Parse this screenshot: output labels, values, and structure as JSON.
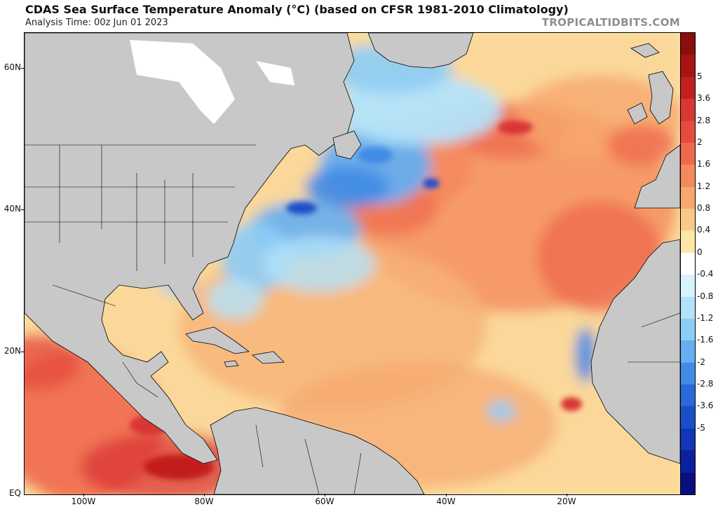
{
  "header": {
    "title": "CDAS Sea Surface Temperature Anomaly (°C) (based on CFSR 1981-2010 Climatology)",
    "analysis_time": "Analysis Time: 00z Jun 01 2023",
    "watermark": "TROPICALTIDBITS.COM"
  },
  "map": {
    "lat_labels": [
      "60N",
      "40N",
      "20N",
      "EQ"
    ],
    "lon_labels": [
      "100W",
      "80W",
      "60W",
      "40W",
      "20W"
    ],
    "land_color": "#c8c8c8",
    "ice_color": "#ffffff",
    "border_color": "#000000"
  },
  "colorbar": {
    "labels": [
      "5",
      "3.6",
      "2.8",
      "2",
      "1.6",
      "1.2",
      "0.8",
      "0.4",
      "0",
      "-0.4",
      "-0.8",
      "-1.2",
      "-1.6",
      "-2",
      "-2.8",
      "-3.6",
      "-5"
    ],
    "colors": [
      "#8b0d0d",
      "#a71414",
      "#c21f1f",
      "#d93636",
      "#e54c3f",
      "#ef6a4d",
      "#f5895d",
      "#f7a86d",
      "#fac887",
      "#fde6a6",
      "#ffffff",
      "#d7f4fd",
      "#b2e3fb",
      "#8ccdf6",
      "#65aef0",
      "#3f8be6",
      "#2a6ad8",
      "#1a4ec9",
      "#1236b5",
      "#0b209d",
      "#071080"
    ]
  }
}
